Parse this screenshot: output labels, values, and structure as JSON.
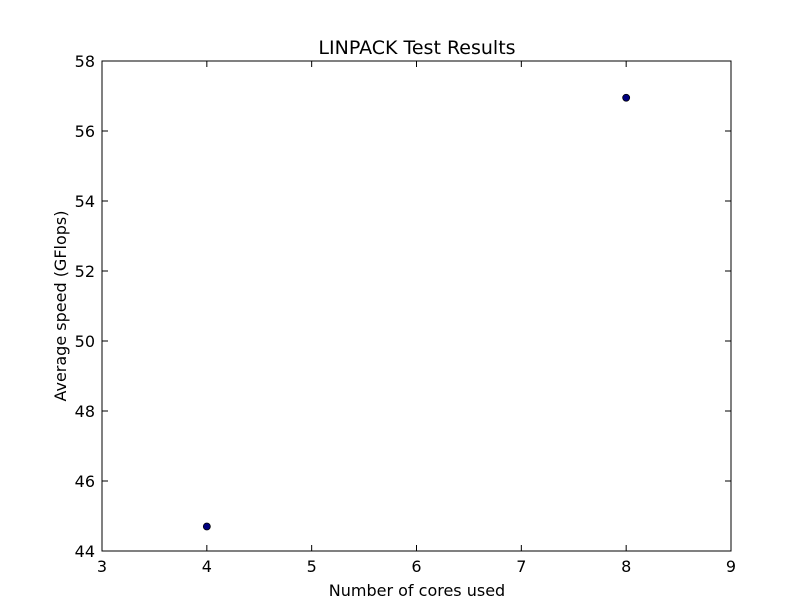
{
  "chart_data": {
    "type": "scatter",
    "title": "LINPACK Test Results",
    "xlabel": "Number of cores used",
    "ylabel": "Average speed (GFlops)",
    "xlim": [
      3,
      9
    ],
    "ylim": [
      44,
      58
    ],
    "xticks": [
      "3",
      "4",
      "5",
      "6",
      "7",
      "8",
      "9"
    ],
    "yticks": [
      "44",
      "46",
      "48",
      "50",
      "52",
      "54",
      "56",
      "58"
    ],
    "grid": false,
    "series": [
      {
        "color": "#00007f",
        "points": [
          {
            "x": 4,
            "y": 44.7
          },
          {
            "x": 8,
            "y": 56.95
          }
        ]
      }
    ]
  }
}
